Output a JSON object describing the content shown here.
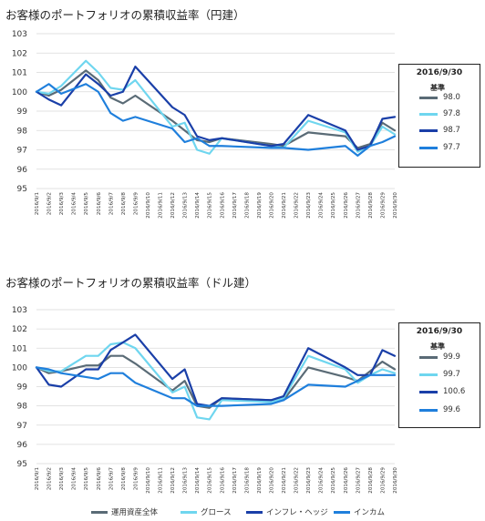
{
  "colors": {
    "whole": "#5a6b76",
    "growth": "#6fd6ef",
    "inflation": "#1a3fa8",
    "income": "#1f7fdc"
  },
  "bottom_legend": [
    "運用資産全体",
    "グロース",
    "インフレ・ヘッジ",
    "インカム"
  ],
  "chart_data": [
    {
      "type": "line",
      "title": "お客様のポートフォリオの累積収益率（円建）",
      "ylim": [
        95,
        103
      ],
      "yticks": [
        95,
        96,
        97,
        98,
        99,
        100,
        101,
        102,
        103
      ],
      "x": [
        "2016/9/1",
        "2016/9/2",
        "2016/9/3",
        "2016/9/4",
        "2016/9/5",
        "2016/9/6",
        "2016/9/7",
        "2016/9/8",
        "2016/9/9",
        "2016/9/10",
        "2016/9/11",
        "2016/9/12",
        "2016/9/13",
        "2016/9/14",
        "2016/9/15",
        "2016/9/16",
        "2016/9/17",
        "2016/9/18",
        "2016/9/19",
        "2016/9/20",
        "2016/9/21",
        "2016/9/22",
        "2016/9/23",
        "2016/9/24",
        "2016/9/25",
        "2016/9/26",
        "2016/9/27",
        "2016/9/28",
        "2016/9/29",
        "2016/9/30"
      ],
      "series": [
        {
          "name": "運用資産全体",
          "values": [
            100.0,
            99.8,
            100.1,
            null,
            101.1,
            100.6,
            99.7,
            99.4,
            99.8,
            null,
            null,
            98.5,
            98.0,
            97.5,
            97.4,
            97.6,
            null,
            null,
            null,
            97.3,
            97.2,
            null,
            97.9,
            null,
            null,
            97.7,
            97.1,
            97.3,
            98.4,
            98.0
          ]
        },
        {
          "name": "グロース",
          "values": [
            100.0,
            99.9,
            100.3,
            null,
            101.6,
            101.0,
            100.2,
            100.1,
            100.6,
            null,
            null,
            98.2,
            98.4,
            97.0,
            96.8,
            97.6,
            null,
            null,
            null,
            97.2,
            97.1,
            null,
            98.5,
            null,
            null,
            97.9,
            96.9,
            97.2,
            98.2,
            97.8
          ]
        },
        {
          "name": "インフレ・ヘッジ",
          "values": [
            100.0,
            99.6,
            99.3,
            null,
            100.9,
            100.4,
            99.8,
            100.0,
            101.3,
            null,
            null,
            99.2,
            98.8,
            97.7,
            97.5,
            97.6,
            null,
            null,
            null,
            97.2,
            97.3,
            null,
            98.8,
            null,
            null,
            98.0,
            97.0,
            97.2,
            98.6,
            98.7
          ]
        },
        {
          "name": "インカム",
          "values": [
            100.0,
            100.4,
            99.9,
            null,
            100.4,
            100.0,
            98.9,
            98.5,
            98.7,
            null,
            null,
            98.1,
            97.4,
            97.6,
            97.2,
            97.2,
            null,
            null,
            null,
            97.1,
            97.1,
            null,
            97.0,
            null,
            null,
            97.2,
            96.7,
            97.2,
            97.4,
            97.7
          ]
        }
      ],
      "legend": {
        "date": "2016/9/30",
        "header": "基準",
        "values": [
          "98.0",
          "97.8",
          "98.7",
          "97.7"
        ]
      }
    },
    {
      "type": "line",
      "title": "お客様のポートフォリオの累積収益率（ドル建）",
      "ylim": [
        95,
        103
      ],
      "yticks": [
        95,
        96,
        97,
        98,
        99,
        100,
        101,
        102,
        103
      ],
      "x": [
        "2016/9/1",
        "2016/9/2",
        "2016/9/3",
        "2016/9/4",
        "2016/9/5",
        "2016/9/6",
        "2016/9/7",
        "2016/9/8",
        "2016/9/9",
        "2016/9/10",
        "2016/9/11",
        "2016/9/12",
        "2016/9/13",
        "2016/9/14",
        "2016/9/15",
        "2016/9/16",
        "2016/9/17",
        "2016/9/18",
        "2016/9/19",
        "2016/9/20",
        "2016/9/21",
        "2016/9/22",
        "2016/9/23",
        "2016/9/24",
        "2016/9/25",
        "2016/9/26",
        "2016/9/27",
        "2016/9/28",
        "2016/9/29",
        "2016/9/30"
      ],
      "series": [
        {
          "name": "運用資産全体",
          "values": [
            100.0,
            99.7,
            99.8,
            null,
            100.1,
            100.1,
            100.6,
            100.6,
            100.2,
            null,
            null,
            98.8,
            99.3,
            98.0,
            97.9,
            98.4,
            null,
            null,
            null,
            98.3,
            98.3,
            null,
            100.0,
            null,
            null,
            99.5,
            99.3,
            99.8,
            100.3,
            99.9
          ]
        },
        {
          "name": "グロース",
          "values": [
            100.0,
            99.8,
            99.8,
            null,
            100.6,
            100.6,
            101.2,
            101.3,
            101.0,
            null,
            null,
            98.7,
            99.0,
            97.4,
            97.3,
            98.3,
            null,
            null,
            null,
            98.2,
            98.4,
            null,
            100.6,
            null,
            null,
            99.9,
            99.2,
            99.6,
            99.9,
            99.7
          ]
        },
        {
          "name": "インフレ・ヘッジ",
          "values": [
            100.0,
            99.1,
            99.0,
            null,
            99.9,
            99.9,
            100.9,
            101.3,
            101.7,
            null,
            null,
            99.4,
            99.9,
            98.1,
            98.0,
            98.4,
            null,
            null,
            null,
            98.3,
            98.5,
            null,
            101.0,
            null,
            null,
            100.0,
            99.6,
            99.6,
            100.9,
            100.6
          ]
        },
        {
          "name": "インカム",
          "values": [
            100.0,
            99.9,
            99.7,
            null,
            99.5,
            99.4,
            99.7,
            99.7,
            99.2,
            null,
            null,
            98.4,
            98.4,
            98.0,
            98.0,
            98.0,
            null,
            null,
            null,
            98.1,
            98.3,
            null,
            99.1,
            null,
            null,
            99.0,
            99.3,
            99.6,
            99.6,
            99.6
          ]
        }
      ],
      "legend": {
        "date": "2016/9/30",
        "header": "基準",
        "values": [
          "99.9",
          "99.7",
          "100.6",
          "99.6"
        ]
      }
    }
  ]
}
